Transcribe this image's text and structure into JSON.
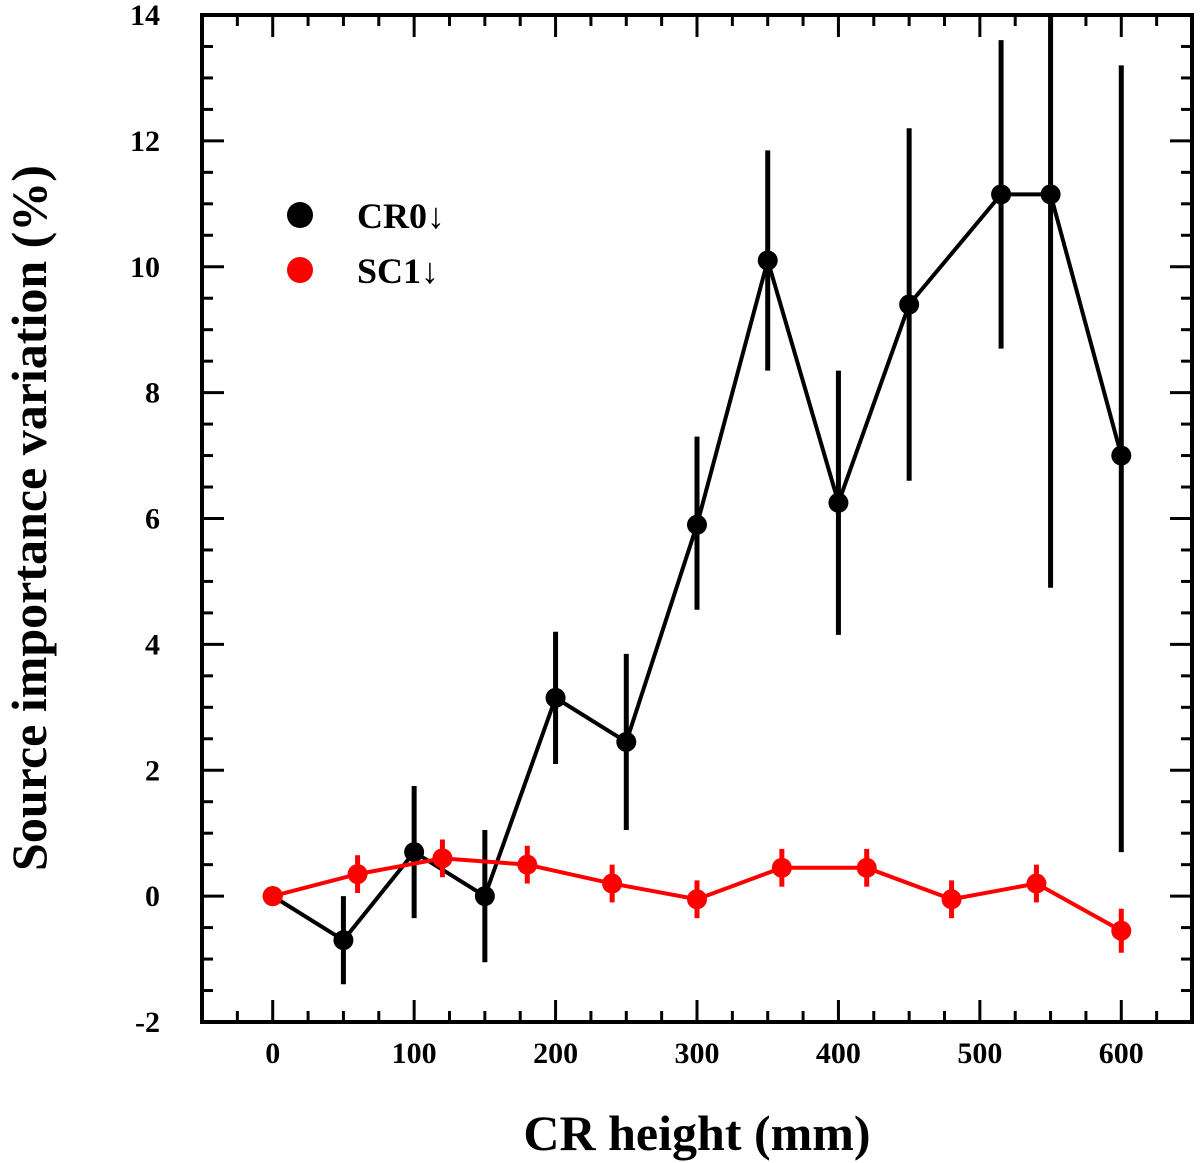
{
  "chart_data": {
    "type": "line",
    "title": "",
    "xlabel": "CR height (mm)",
    "ylabel": "Source importance variation (%)",
    "xlim": [
      -50,
      650
    ],
    "ylim": [
      -2,
      14
    ],
    "xticks": [
      0,
      100,
      200,
      300,
      400,
      500,
      600
    ],
    "yticks": [
      -2,
      0,
      2,
      4,
      6,
      8,
      10,
      12,
      14
    ],
    "xtick_labels": [
      "0",
      "100",
      "200",
      "300",
      "400",
      "500",
      "600"
    ],
    "ytick_labels": [
      "-2",
      "0",
      "2",
      "4",
      "6",
      "8",
      "10",
      "12",
      "14"
    ],
    "legend_position": "top-left",
    "series": [
      {
        "name": "CR0↓",
        "color": "#000000",
        "x": [
          0,
          50,
          100,
          150,
          200,
          250,
          300,
          350,
          400,
          450,
          515,
          550,
          600
        ],
        "y": [
          0,
          -0.7,
          0.7,
          0,
          3.15,
          2.45,
          5.9,
          10.1,
          6.25,
          9.4,
          11.15,
          11.15,
          7.0
        ],
        "y_low": [
          0,
          -1.4,
          -0.35,
          -1.05,
          2.1,
          1.05,
          4.55,
          8.35,
          4.15,
          6.6,
          8.7,
          4.9,
          0.7
        ],
        "y_high": [
          0,
          0,
          1.75,
          1.05,
          4.2,
          3.85,
          7.3,
          11.85,
          8.35,
          12.2,
          13.6,
          14.0,
          13.2
        ]
      },
      {
        "name": "SC1↓",
        "color": "#ff0000",
        "x": [
          0,
          60,
          120,
          180,
          240,
          300,
          360,
          420,
          480,
          540,
          600
        ],
        "y": [
          0,
          0.35,
          0.6,
          0.5,
          0.2,
          -0.05,
          0.45,
          0.45,
          -0.05,
          0.2,
          -0.55
        ],
        "y_low": [
          0,
          0.05,
          0.3,
          0.2,
          -0.1,
          -0.35,
          0.15,
          0.15,
          -0.35,
          -0.1,
          -0.9
        ],
        "y_high": [
          0,
          0.65,
          0.9,
          0.8,
          0.5,
          0.25,
          0.75,
          0.75,
          0.25,
          0.5,
          -0.2
        ]
      }
    ]
  }
}
